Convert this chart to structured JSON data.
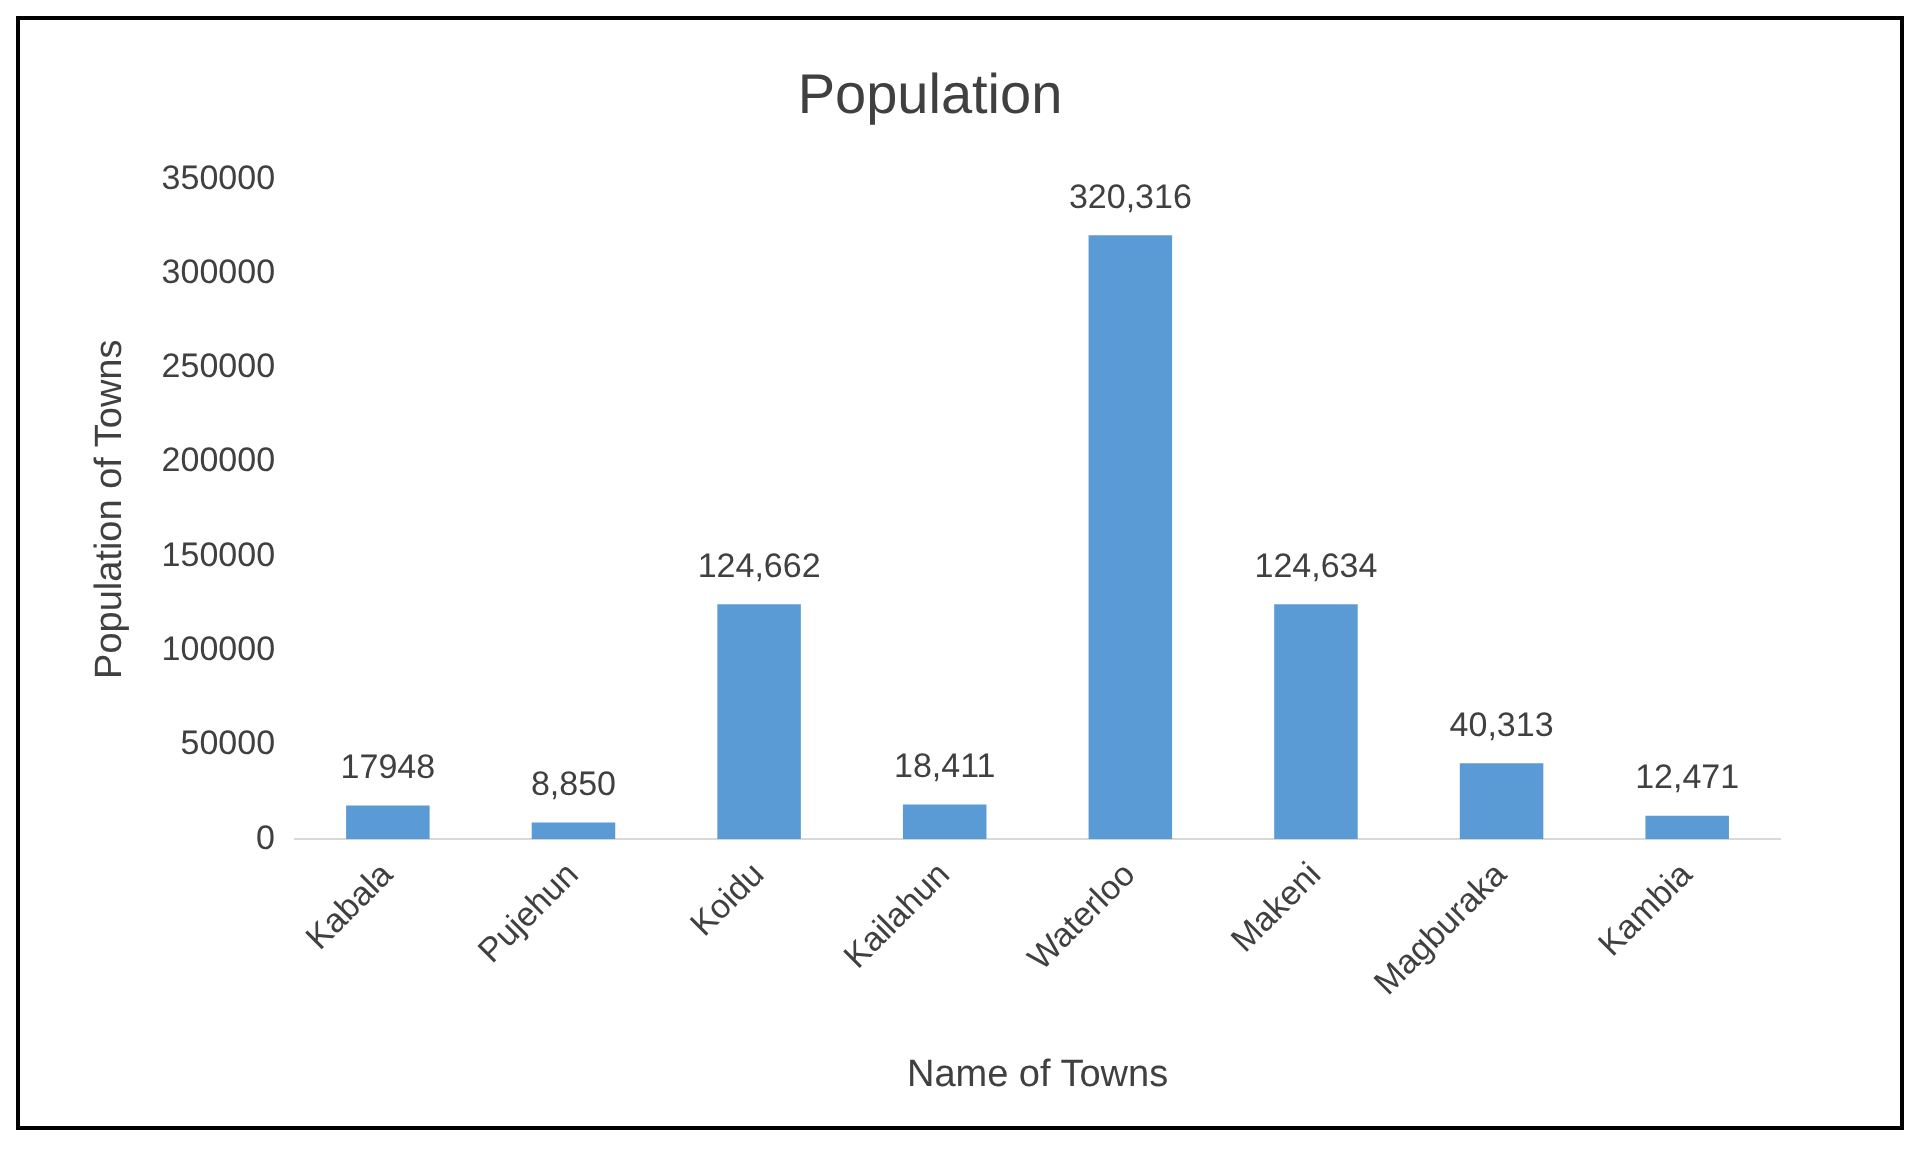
{
  "chart_data": {
    "type": "bar",
    "title": "Population",
    "xlabel": "Name of Towns",
    "ylabel": "Population of Towns",
    "categories": [
      "Kabala",
      "Pujehun",
      "Koidu",
      "Kailahun",
      "Waterloo",
      "Makeni",
      "Magburaka",
      "Kambia"
    ],
    "values": [
      17948,
      8850,
      124662,
      18411,
      320316,
      124634,
      40313,
      12471
    ],
    "value_labels": [
      "17948",
      "8,850",
      "124,662",
      "18,411",
      "320,316",
      "124,634",
      "40,313",
      "12,471"
    ],
    "color": "#5b9bd5",
    "ylim": [
      0,
      350000
    ],
    "yticks": [
      0,
      50000,
      100000,
      150000,
      200000,
      250000,
      300000,
      350000
    ],
    "grid": false,
    "legend": false
  }
}
